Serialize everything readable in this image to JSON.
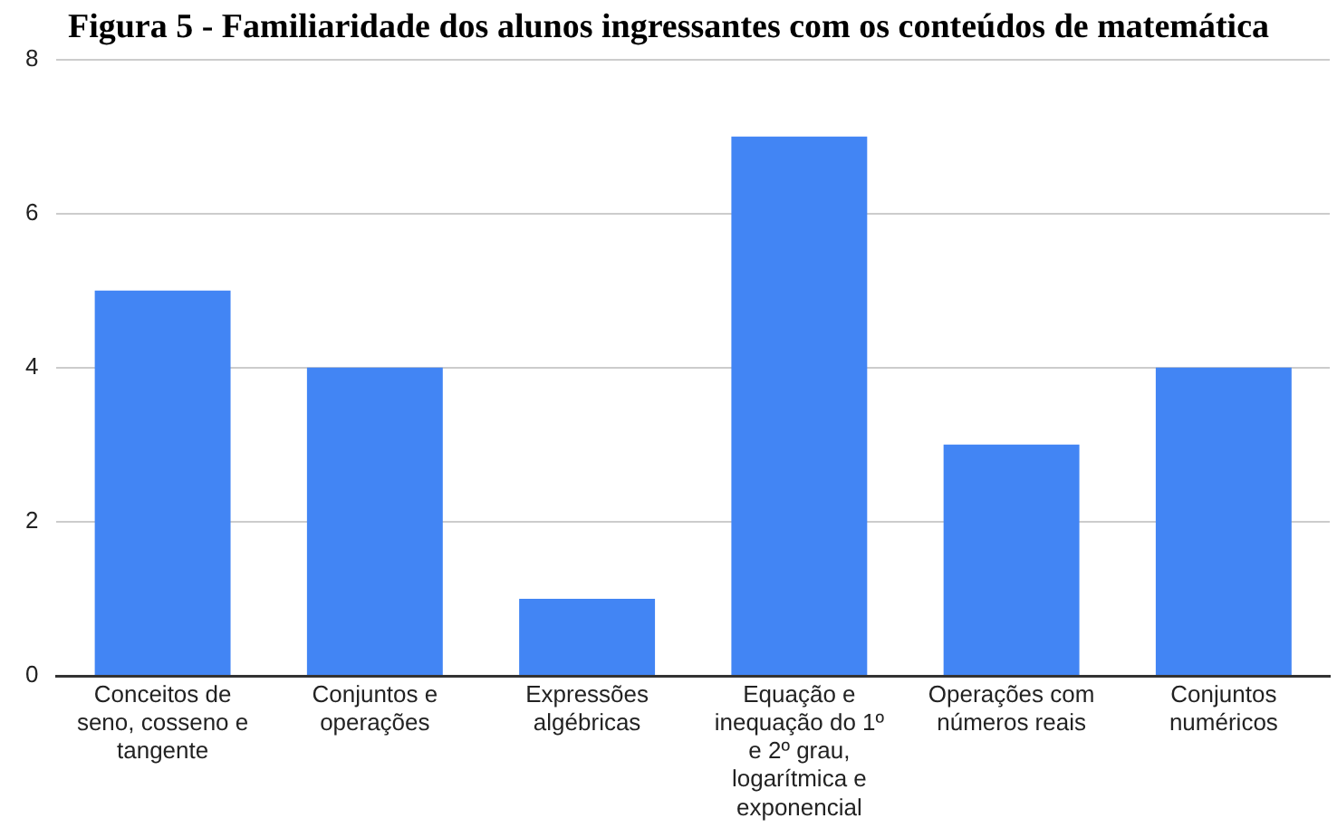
{
  "chart_data": {
    "type": "bar",
    "title": "Figura 5 - Familiaridade dos alunos ingressantes com os conteúdos de matemática",
    "categories": [
      "Conceitos de seno, cosseno e tangente",
      "Conjuntos e operações",
      "Expressões algébricas",
      "Equação e inequação do 1º e 2º grau, logarítmica e exponencial",
      "Operações com números reais",
      "Conjuntos numéricos"
    ],
    "values": [
      5,
      4,
      1,
      7,
      3,
      4
    ],
    "color": "#4285f4",
    "ylim": [
      0,
      8
    ],
    "yticks": [
      0,
      2,
      4,
      6,
      8
    ],
    "grid": "y",
    "legend": false
  }
}
